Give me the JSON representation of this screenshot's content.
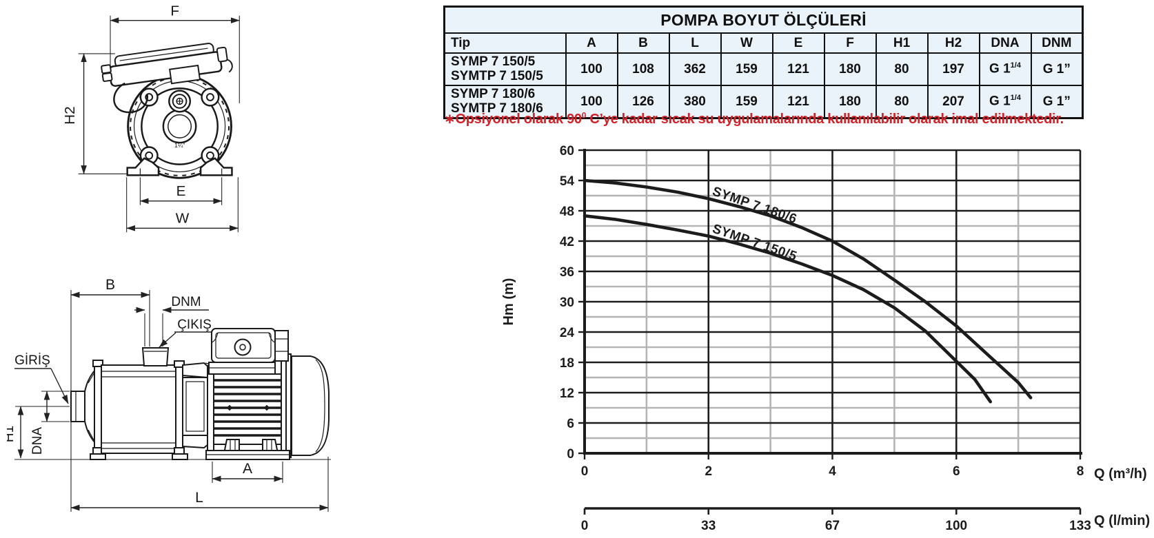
{
  "table": {
    "title": "POMPA BOYUT ÖLÇÜLERİ",
    "columns": [
      "Tip",
      "A",
      "B",
      "L",
      "W",
      "E",
      "F",
      "H1",
      "H2",
      "DNA",
      "DNM"
    ],
    "rows": [
      {
        "tip1": "SYMP 7 150/5",
        "tip2": "SYMTP 7 150/5",
        "a": "100",
        "b": "108",
        "l": "362",
        "w": "159",
        "e": "121",
        "f": "180",
        "h1": "80",
        "h2": "197",
        "dna_base": "G 1",
        "dna_sup": "1/4",
        "dnm": "G 1”"
      },
      {
        "tip1": "SYMP 7 180/6",
        "tip2": "SYMTP 7 180/6",
        "a": "100",
        "b": "126",
        "l": "380",
        "w": "159",
        "e": "121",
        "f": "180",
        "h1": "80",
        "h2": "207",
        "dna_base": "G 1",
        "dna_sup": "1/4",
        "dnm": "G 1”"
      }
    ]
  },
  "note": {
    "pre": "∗Opsiyonel olarak 90",
    "sup": "0",
    "post": " C’ye kadar sıcak su uygulamalarında kullanılabilir olarak imal edilmektedir.",
    "color": "#d2232a"
  },
  "drawings": {
    "front": {
      "dim_f": "F",
      "dim_h2": "H2",
      "dim_e": "E",
      "dim_w": "W",
      "port_size": "1¼”"
    },
    "side": {
      "dim_b": "B",
      "dim_dnm": "DNM",
      "dim_cikis": "ÇIKIŞ",
      "dim_giris": "GİRİŞ",
      "dim_h1": "H1",
      "dim_dna": "DNA",
      "dim_a": "A",
      "dim_l": "L"
    }
  },
  "chart_data": {
    "type": "line",
    "title": "",
    "xlabel": "Q (m³/h)",
    "xlabel2": "Q (l/min)",
    "ylabel": "Hm (m)",
    "xlim": [
      0,
      8
    ],
    "ylim": [
      0,
      60
    ],
    "x_major_ticks": [
      0,
      2,
      4,
      6,
      8
    ],
    "x_minor_step": 1,
    "y_major_step": 6,
    "y_minor_step": 3,
    "x2_ticks": [
      0,
      33,
      67,
      100,
      133
    ],
    "grid": "on",
    "series": [
      {
        "name": "SYMP 7 180/6",
        "points": [
          [
            0,
            54
          ],
          [
            0.5,
            53.5
          ],
          [
            1,
            52.7
          ],
          [
            1.5,
            51.7
          ],
          [
            2,
            50.4
          ],
          [
            2.5,
            48.8
          ],
          [
            3,
            47
          ],
          [
            3.5,
            44.7
          ],
          [
            4,
            42
          ],
          [
            4.5,
            38.5
          ],
          [
            5,
            34.3
          ],
          [
            5.5,
            30
          ],
          [
            6,
            25.2
          ],
          [
            6.5,
            19.6
          ],
          [
            7,
            14
          ],
          [
            7.2,
            11
          ]
        ]
      },
      {
        "name": "SYMP 7 150/5",
        "points": [
          [
            0,
            47
          ],
          [
            0.5,
            46.3
          ],
          [
            1,
            45.3
          ],
          [
            1.5,
            44.2
          ],
          [
            2,
            43
          ],
          [
            2.5,
            41.4
          ],
          [
            3,
            39.6
          ],
          [
            3.5,
            37.5
          ],
          [
            4,
            35.2
          ],
          [
            4.5,
            32.4
          ],
          [
            5,
            28.8
          ],
          [
            5.5,
            24.2
          ],
          [
            6,
            18.2
          ],
          [
            6.3,
            14.6
          ],
          [
            6.55,
            10.2
          ]
        ]
      }
    ]
  }
}
